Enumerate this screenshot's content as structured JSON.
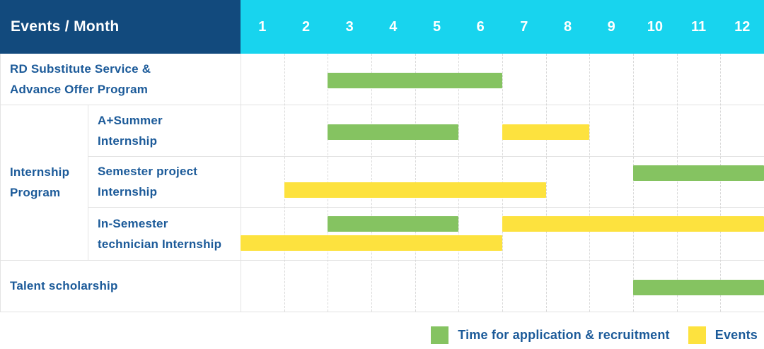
{
  "header": {
    "title": "Events / Month",
    "months": [
      "1",
      "2",
      "3",
      "4",
      "5",
      "6",
      "7",
      "8",
      "9",
      "10",
      "11",
      "12"
    ]
  },
  "colors": {
    "header_bg": "#124A7D",
    "month_header_bg": "#18D4EE",
    "application_bar": "#85C361",
    "event_bar": "#FDE23E",
    "label_text": "#1B5A99",
    "header_text": "#FFFFFF",
    "grid_line": "#E3E3E3"
  },
  "legend": [
    {
      "key": "application",
      "label": "Time for application & recruitment",
      "color": "#85C361"
    },
    {
      "key": "events",
      "label": "Events",
      "color": "#FDE23E"
    }
  ],
  "chart_data": {
    "type": "gantt",
    "x_unit": "month",
    "x_ticks": [
      1,
      2,
      3,
      4,
      5,
      6,
      7,
      8,
      9,
      10,
      11,
      12
    ],
    "first_column_header": "Events / Month",
    "groups": [
      {
        "id": "internship-program",
        "label_lines": [
          "Internship",
          "Program"
        ],
        "row_ids": [
          "a-summer",
          "semester-project",
          "in-semester"
        ]
      }
    ],
    "rows": [
      {
        "id": "rd-substitute",
        "label_lines": [
          "RD Substitute Service &",
          "Advance Offer Program"
        ],
        "in_group": false,
        "bars": [
          {
            "category": "application",
            "start_month": 3,
            "end_month": 6,
            "lane": "middle"
          }
        ]
      },
      {
        "id": "a-summer",
        "label_lines": [
          "A+Summer",
          "Internship"
        ],
        "in_group": true,
        "bars": [
          {
            "category": "application",
            "start_month": 3,
            "end_month": 5,
            "lane": "middle"
          },
          {
            "category": "events",
            "start_month": 7,
            "end_month": 8,
            "lane": "middle"
          }
        ]
      },
      {
        "id": "semester-project",
        "label_lines": [
          "Semester project",
          "Internship"
        ],
        "in_group": true,
        "bars": [
          {
            "category": "application",
            "start_month": 10,
            "end_month": 12,
            "lane": "top"
          },
          {
            "category": "events",
            "start_month": 2,
            "end_month": 7,
            "lane": "bottom"
          }
        ]
      },
      {
        "id": "in-semester",
        "label_lines": [
          "In-Semester",
          "technician Internship"
        ],
        "in_group": true,
        "bars": [
          {
            "category": "application",
            "start_month": 3,
            "end_month": 5,
            "lane": "top"
          },
          {
            "category": "events",
            "start_month": 7,
            "end_month": 12,
            "lane": "top"
          },
          {
            "category": "events",
            "start_month": 1,
            "end_month": 6,
            "lane": "bottom"
          }
        ]
      },
      {
        "id": "talent-scholarship",
        "label_lines": [
          "Talent scholarship"
        ],
        "in_group": false,
        "bars": [
          {
            "category": "application",
            "start_month": 10,
            "end_month": 12,
            "lane": "middle"
          }
        ]
      }
    ]
  }
}
